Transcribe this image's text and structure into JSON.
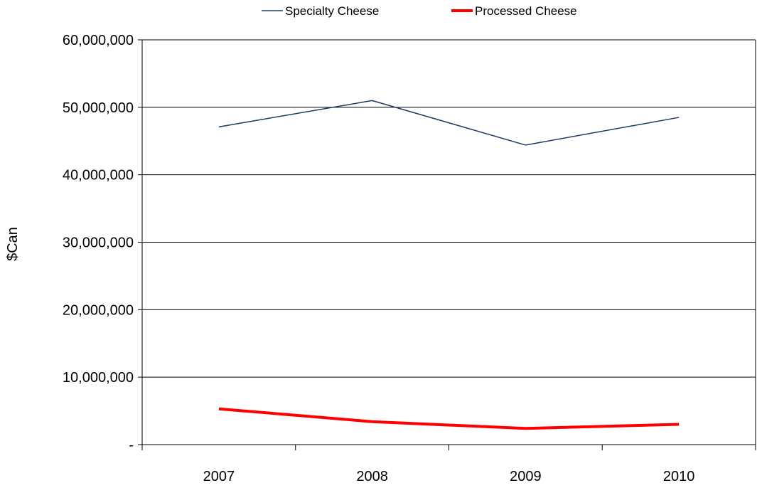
{
  "chart_data": {
    "type": "line",
    "categories": [
      "2007",
      "2008",
      "2009",
      "2010"
    ],
    "series": [
      {
        "name": "Specialty Cheese",
        "values": [
          47100000,
          51000000,
          44400000,
          48500000
        ],
        "color": "#1f3864"
      },
      {
        "name": "Processed Cheese",
        "values": [
          5300000,
          3400000,
          2400000,
          3000000
        ],
        "color": "#ff0000"
      }
    ],
    "title": "",
    "xlabel": "",
    "ylabel": "$Can",
    "ylim": [
      0,
      60000000
    ],
    "y_ticks": [
      "-",
      "10,000,000",
      "20,000,000",
      "30,000,000",
      "40,000,000",
      "50,000,000",
      "60,000,000"
    ],
    "grid": true,
    "legend_position": "top"
  }
}
